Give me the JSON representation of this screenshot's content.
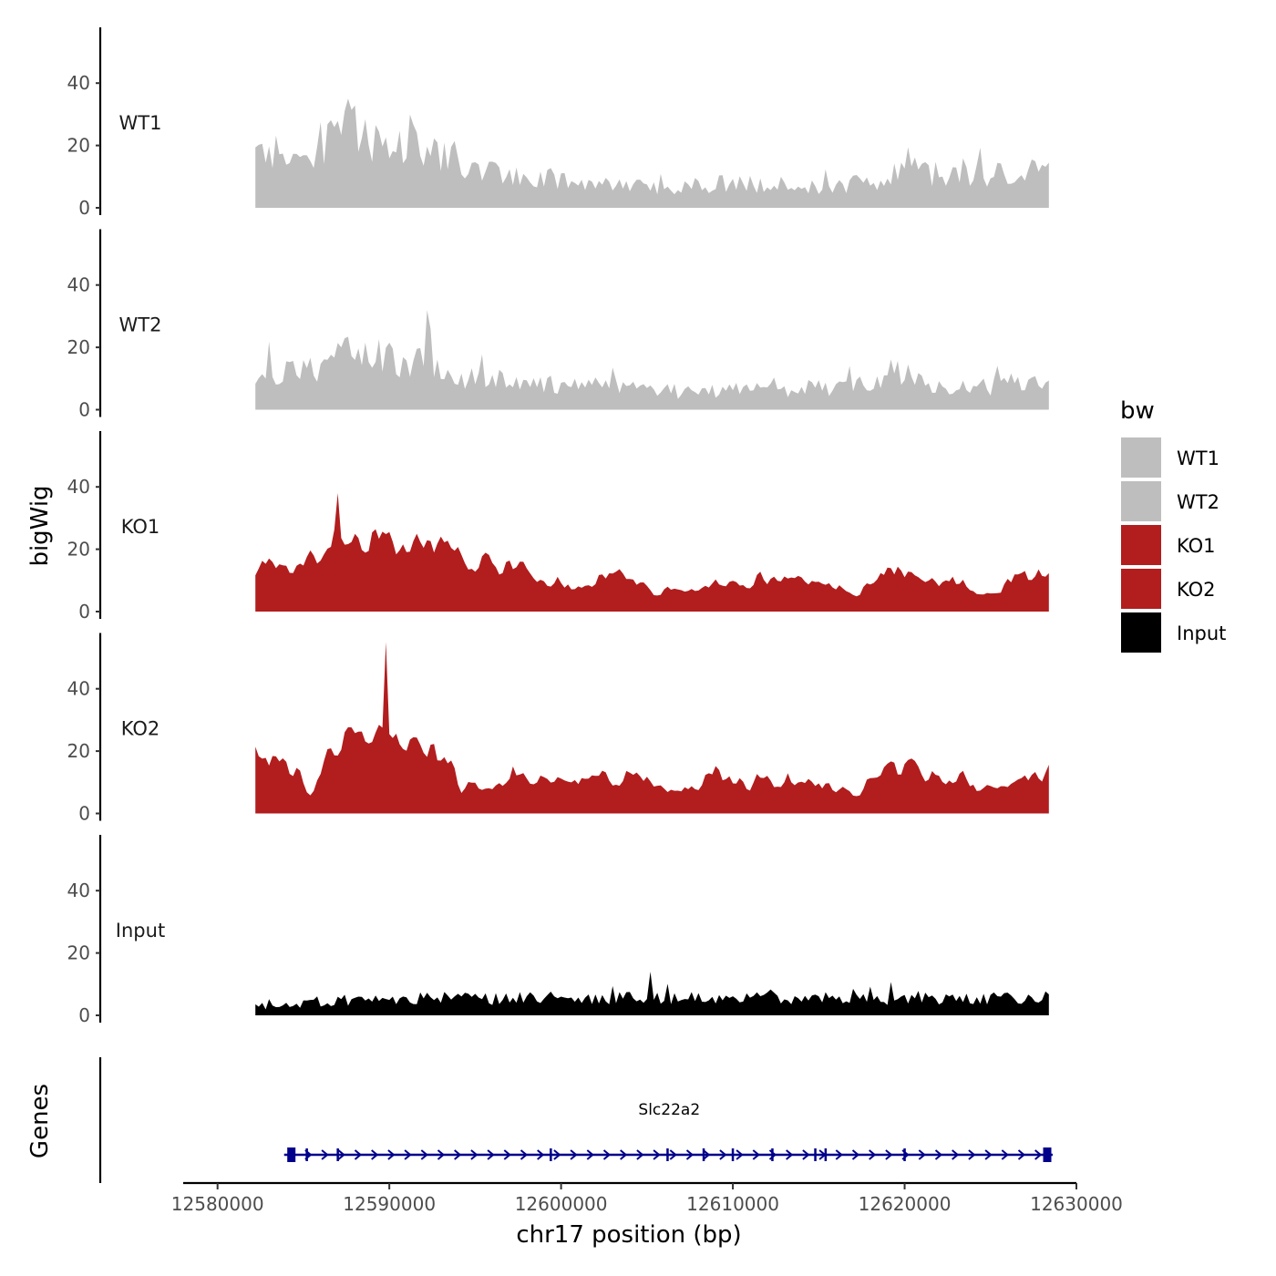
{
  "chart_data": {
    "type": "area",
    "xlabel": "chr17 position (bp)",
    "ylabel": "bigWig",
    "xlim": [
      12578000,
      12630000
    ],
    "x_ticks": [
      12580000,
      12590000,
      12600000,
      12610000,
      12620000,
      12630000
    ],
    "x_tick_labels": [
      "12580000",
      "12590000",
      "12600000",
      "12610000",
      "12620000",
      "12630000"
    ],
    "ylim": [
      0,
      57
    ],
    "y_ticks": [
      0,
      20,
      40
    ],
    "y_tick_labels": [
      "0",
      "20",
      "40"
    ],
    "data_range": [
      12582200,
      12628400
    ],
    "bin_bp": 200,
    "tracks": [
      {
        "name": "WT1",
        "color": "#bebebe",
        "max": 35,
        "smoothing": "jagged",
        "profile": [
          [
            12582200,
            21
          ],
          [
            12585000,
            17
          ],
          [
            12587000,
            27
          ],
          [
            12589500,
            26
          ],
          [
            12591500,
            24
          ],
          [
            12593500,
            19
          ],
          [
            12595500,
            13
          ],
          [
            12597500,
            11
          ],
          [
            12600500,
            9
          ],
          [
            12603500,
            8
          ],
          [
            12606500,
            7
          ],
          [
            12609500,
            9
          ],
          [
            12612500,
            8
          ],
          [
            12615500,
            8
          ],
          [
            12618500,
            9
          ],
          [
            12620000,
            13
          ],
          [
            12623000,
            11
          ],
          [
            12625500,
            12
          ],
          [
            12628400,
            15
          ]
        ]
      },
      {
        "name": "WT2",
        "color": "#bebebe",
        "max": 32,
        "smoothing": "jagged",
        "profile": [
          [
            12582200,
            12
          ],
          [
            12585000,
            13
          ],
          [
            12587500,
            19
          ],
          [
            12590000,
            20
          ],
          [
            12592000,
            16
          ],
          [
            12594000,
            11
          ],
          [
            12596000,
            11
          ],
          [
            12598500,
            8
          ],
          [
            12601000,
            9
          ],
          [
            12604000,
            9
          ],
          [
            12607000,
            6
          ],
          [
            12610000,
            7
          ],
          [
            12613000,
            7
          ],
          [
            12616000,
            8
          ],
          [
            12618500,
            9
          ],
          [
            12620000,
            14
          ],
          [
            12622000,
            8
          ],
          [
            12625000,
            8
          ],
          [
            12628400,
            9
          ]
        ]
      },
      {
        "name": "KO1",
        "color": "#b21d1e",
        "max": 38,
        "smoothing": "smooth",
        "profile": [
          [
            12582200,
            16
          ],
          [
            12584500,
            13
          ],
          [
            12586000,
            21
          ],
          [
            12588000,
            27
          ],
          [
            12590000,
            25
          ],
          [
            12592000,
            22
          ],
          [
            12594000,
            19
          ],
          [
            12596000,
            17
          ],
          [
            12598000,
            14
          ],
          [
            12599500,
            10
          ],
          [
            12601000,
            8
          ],
          [
            12603000,
            13
          ],
          [
            12605500,
            6
          ],
          [
            12608000,
            7
          ],
          [
            12611000,
            10
          ],
          [
            12613500,
            11
          ],
          [
            12615500,
            9
          ],
          [
            12617000,
            5
          ],
          [
            12619000,
            14
          ],
          [
            12621000,
            11
          ],
          [
            12623500,
            11
          ],
          [
            12625000,
            5
          ],
          [
            12626500,
            12
          ],
          [
            12628400,
            15
          ]
        ]
      },
      {
        "name": "KO2",
        "color": "#b21d1e",
        "max": 55,
        "smoothing": "smooth",
        "profile": [
          [
            12582200,
            20
          ],
          [
            12584500,
            14
          ],
          [
            12585500,
            6
          ],
          [
            12586500,
            22
          ],
          [
            12588000,
            30
          ],
          [
            12590000,
            28
          ],
          [
            12592000,
            25
          ],
          [
            12593500,
            22
          ],
          [
            12594200,
            8
          ],
          [
            12596000,
            11
          ],
          [
            12598000,
            12
          ],
          [
            12600500,
            10
          ],
          [
            12602500,
            12
          ],
          [
            12604000,
            13
          ],
          [
            12606500,
            7
          ],
          [
            12609000,
            13
          ],
          [
            12611000,
            10
          ],
          [
            12613000,
            11
          ],
          [
            12615000,
            10
          ],
          [
            12617000,
            7
          ],
          [
            12619500,
            17
          ],
          [
            12621000,
            14
          ],
          [
            12623000,
            11
          ],
          [
            12625000,
            9
          ],
          [
            12627000,
            12
          ],
          [
            12628400,
            13
          ]
        ]
      },
      {
        "name": "Input",
        "color": "#000000",
        "max": 14,
        "smoothing": "jagged",
        "profile": [
          [
            12582200,
            3
          ],
          [
            12586000,
            5
          ],
          [
            12590000,
            6
          ],
          [
            12595000,
            6
          ],
          [
            12600000,
            6
          ],
          [
            12605000,
            6
          ],
          [
            12610000,
            6
          ],
          [
            12615000,
            6
          ],
          [
            12620000,
            6
          ],
          [
            12625000,
            6
          ],
          [
            12628400,
            7
          ]
        ]
      }
    ],
    "legend": {
      "title": "bw",
      "placement": "right",
      "items": [
        {
          "label": "WT1",
          "color": "#bebebe"
        },
        {
          "label": "WT2",
          "color": "#bebebe"
        },
        {
          "label": "KO1",
          "color": "#b21d1e"
        },
        {
          "label": "KO2",
          "color": "#b21d1e"
        },
        {
          "label": "Input",
          "color": "#000000"
        }
      ]
    },
    "genes_track": {
      "title": "Genes",
      "gene": "Slc22a2",
      "strand": "+",
      "color": "#00008b",
      "start": 12584300,
      "end": 12628300,
      "exons": [
        12584300,
        12585200,
        12587000,
        12599400,
        12606200,
        12608300,
        12610000,
        12612300,
        12614800,
        12615400,
        12620000,
        12628300
      ]
    }
  }
}
